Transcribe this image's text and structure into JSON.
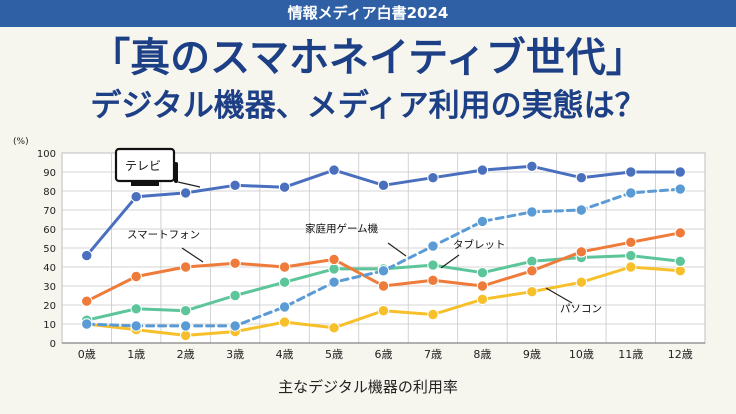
{
  "header": {
    "banner": "情報メディア白書2024",
    "title_line1": "「真のスマホネイティブ世代」",
    "title_line2": "デジタル機器、メディア利用の実態は？"
  },
  "footer": {
    "caption": "主なデジタル機器の利用率"
  },
  "chart_data": {
    "type": "line",
    "ylabel": "(%)",
    "xlabel": "",
    "title": "",
    "ylim": [
      0,
      100
    ],
    "yticks": [
      0,
      10,
      20,
      30,
      40,
      50,
      60,
      70,
      80,
      90,
      100
    ],
    "grid": true,
    "categories": [
      "0歳",
      "1歳",
      "2歳",
      "3歳",
      "4歳",
      "5歳",
      "6歳",
      "7歳",
      "8歳",
      "9歳",
      "10歳",
      "11歳",
      "12歳"
    ],
    "series": [
      {
        "name": "テレビ",
        "color": "#4a6fbf",
        "dashed": false,
        "icon": "tv-icon",
        "values": [
          46,
          77,
          79,
          83,
          82,
          91,
          83,
          87,
          91,
          93,
          87,
          90,
          90
        ]
      },
      {
        "name": "スマートフォン",
        "color": "#ef7b3a",
        "dashed": false,
        "values": [
          22,
          35,
          40,
          42,
          40,
          44,
          30,
          33,
          30,
          38,
          48,
          53,
          58
        ]
      },
      {
        "name": "家庭用ゲーム機",
        "color": "#5b9bd5",
        "dashed": true,
        "values": [
          10,
          9,
          9,
          9,
          19,
          32,
          38,
          51,
          64,
          69,
          70,
          79,
          81
        ]
      },
      {
        "name": "タブレット",
        "color": "#5cc59a",
        "dashed": false,
        "values": [
          12,
          18,
          17,
          25,
          32,
          39,
          39,
          41,
          37,
          43,
          45,
          46,
          43
        ]
      },
      {
        "name": "パソコン",
        "color": "#f7c02a",
        "dashed": false,
        "values": [
          10,
          7,
          4,
          6,
          11,
          8,
          17,
          15,
          23,
          27,
          32,
          40,
          38
        ]
      }
    ]
  }
}
